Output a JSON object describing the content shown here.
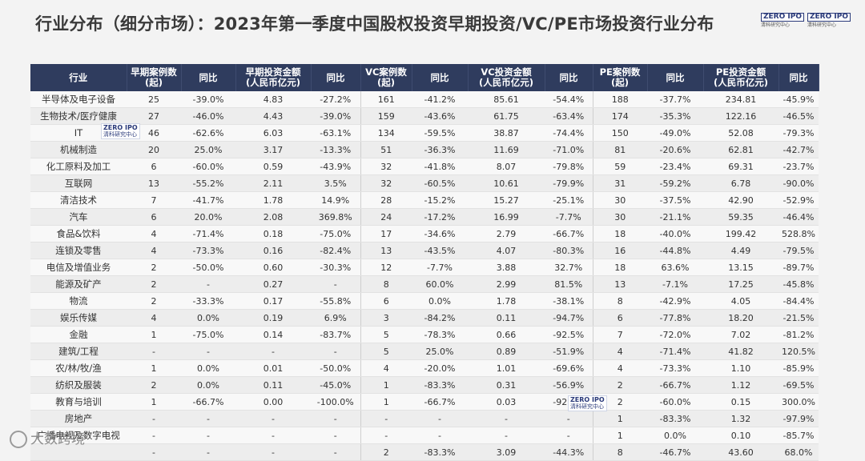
{
  "title": "行业分布（细分市场）：2023年第一季度中国股权投资早期投资/VC/PE市场投资行业分布",
  "logos": {
    "brand_mark": "ZERO IPO",
    "brand_sub": "清科研究中心",
    "footer_text": "大数跨境"
  },
  "headers": [
    "行业",
    "早期案例数\n(起)",
    "同比",
    "早期投资金额\n(人民币亿元)",
    "同比",
    "VC案例数\n(起)",
    "同比",
    "VC投资金额\n(人民币亿元)",
    "同比",
    "PE案例数\n(起)",
    "同比",
    "PE投资金额\n(人民币亿元)",
    "同比"
  ],
  "rows": [
    [
      "半导体及电子设备",
      "25",
      "-39.0%",
      "4.83",
      "-27.2%",
      "161",
      "-41.2%",
      "85.61",
      "-54.4%",
      "188",
      "-37.7%",
      "234.81",
      "-45.9%"
    ],
    [
      "生物技术/医疗健康",
      "27",
      "-46.0%",
      "4.43",
      "-39.0%",
      "159",
      "-43.6%",
      "61.75",
      "-63.4%",
      "174",
      "-35.3%",
      "122.16",
      "-46.5%"
    ],
    [
      "IT",
      "46",
      "-62.6%",
      "6.03",
      "-63.1%",
      "134",
      "-59.5%",
      "38.87",
      "-74.4%",
      "150",
      "-49.0%",
      "52.08",
      "-79.3%"
    ],
    [
      "机械制造",
      "20",
      "25.0%",
      "3.17",
      "-13.3%",
      "51",
      "-36.3%",
      "11.69",
      "-71.0%",
      "81",
      "-20.6%",
      "62.81",
      "-42.7%"
    ],
    [
      "化工原料及加工",
      "6",
      "-60.0%",
      "0.59",
      "-43.9%",
      "32",
      "-41.8%",
      "8.07",
      "-79.8%",
      "59",
      "-23.4%",
      "69.31",
      "-23.7%"
    ],
    [
      "互联网",
      "13",
      "-55.2%",
      "2.11",
      "3.5%",
      "32",
      "-60.5%",
      "10.61",
      "-79.9%",
      "31",
      "-59.2%",
      "6.78",
      "-90.0%"
    ],
    [
      "清洁技术",
      "7",
      "-41.7%",
      "1.78",
      "14.9%",
      "28",
      "-15.2%",
      "15.27",
      "-25.1%",
      "30",
      "-37.5%",
      "42.90",
      "-52.9%"
    ],
    [
      "汽车",
      "6",
      "20.0%",
      "2.08",
      "369.8%",
      "24",
      "-17.2%",
      "16.99",
      "-7.7%",
      "30",
      "-21.1%",
      "59.35",
      "-46.4%"
    ],
    [
      "食品&饮料",
      "4",
      "-71.4%",
      "0.18",
      "-75.0%",
      "17",
      "-34.6%",
      "2.79",
      "-66.7%",
      "18",
      "-40.0%",
      "199.42",
      "528.8%"
    ],
    [
      "连锁及零售",
      "4",
      "-73.3%",
      "0.16",
      "-82.4%",
      "13",
      "-43.5%",
      "4.07",
      "-80.3%",
      "16",
      "-44.8%",
      "4.49",
      "-79.5%"
    ],
    [
      "电信及增值业务",
      "2",
      "-50.0%",
      "0.60",
      "-30.3%",
      "12",
      "-7.7%",
      "3.88",
      "32.7%",
      "18",
      "63.6%",
      "13.15",
      "-89.7%"
    ],
    [
      "能源及矿产",
      "2",
      "-",
      "0.27",
      "-",
      "8",
      "60.0%",
      "2.99",
      "81.5%",
      "13",
      "-7.1%",
      "17.25",
      "-45.8%"
    ],
    [
      "物流",
      "2",
      "-33.3%",
      "0.17",
      "-55.8%",
      "6",
      "0.0%",
      "1.78",
      "-38.1%",
      "8",
      "-42.9%",
      "4.05",
      "-84.4%"
    ],
    [
      "娱乐传媒",
      "4",
      "0.0%",
      "0.19",
      "6.9%",
      "3",
      "-84.2%",
      "0.11",
      "-94.7%",
      "6",
      "-77.8%",
      "18.20",
      "-21.5%"
    ],
    [
      "金融",
      "1",
      "-75.0%",
      "0.14",
      "-83.7%",
      "5",
      "-78.3%",
      "0.66",
      "-92.5%",
      "7",
      "-72.0%",
      "7.02",
      "-81.2%"
    ],
    [
      "建筑/工程",
      "-",
      "-",
      "-",
      "-",
      "5",
      "25.0%",
      "0.89",
      "-51.9%",
      "4",
      "-71.4%",
      "41.82",
      "120.5%"
    ],
    [
      "农/林/牧/渔",
      "1",
      "0.0%",
      "0.01",
      "-50.0%",
      "4",
      "-20.0%",
      "1.01",
      "-69.6%",
      "4",
      "-73.3%",
      "1.10",
      "-85.9%"
    ],
    [
      "纺织及服装",
      "2",
      "0.0%",
      "0.11",
      "-45.0%",
      "1",
      "-83.3%",
      "0.31",
      "-56.9%",
      "2",
      "-66.7%",
      "1.12",
      "-69.5%"
    ],
    [
      "教育与培训",
      "1",
      "-66.7%",
      "0.00",
      "-100.0%",
      "1",
      "-66.7%",
      "0.03",
      "-92.5%",
      "2",
      "-60.0%",
      "0.15",
      "300.0%"
    ],
    [
      "房地产",
      "-",
      "-",
      "-",
      "-",
      "-",
      "-",
      "-",
      "-",
      "1",
      "-83.3%",
      "1.32",
      "-97.9%"
    ],
    [
      "广播电视及数字电视",
      "-",
      "-",
      "-",
      "-",
      "-",
      "-",
      "-",
      "-",
      "1",
      "0.0%",
      "0.10",
      "-85.7%"
    ],
    [
      "",
      "-",
      "-",
      "-",
      "-",
      "2",
      "-83.3%",
      "3.09",
      "-44.3%",
      "8",
      "-46.7%",
      "43.60",
      "68.0%"
    ]
  ]
}
